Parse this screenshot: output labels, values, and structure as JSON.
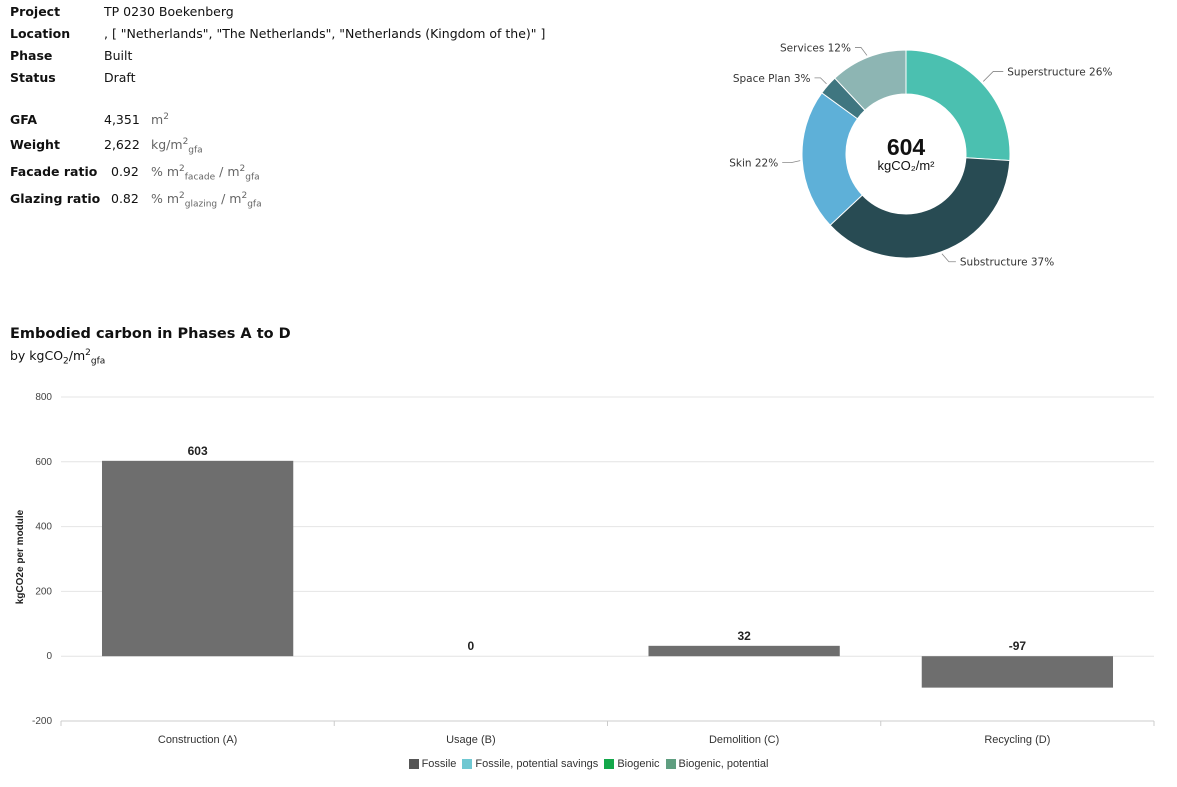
{
  "project_info": {
    "project_label": "Project",
    "project_value": "TP 0230 Boekenberg",
    "location_label": "Location",
    "location_value": ", [ \"Netherlands\", \"The Netherlands\", \"Netherlands (Kingdom of the)\" ]",
    "phase_label": "Phase",
    "phase_value": "Built",
    "status_label": "Status",
    "status_value": "Draft"
  },
  "metrics": {
    "gfa_label": "GFA",
    "gfa_value": "4,351",
    "gfa_unit": "m",
    "gfa_unit_sup": "2",
    "weight_label": "Weight",
    "weight_value": "2,622",
    "weight_unit": "kg/m",
    "weight_unit_sup": "2",
    "weight_unit_sub": "gfa",
    "facade_label": "Facade ratio",
    "facade_value": "0.92",
    "facade_unit_a": "% m",
    "facade_sup_a": "2",
    "facade_sub_a": "facade",
    "facade_unit_b": " / m",
    "facade_sup_b": "2",
    "facade_sub_b": "gfa",
    "glazing_label": "Glazing ratio",
    "glazing_value": "0.82",
    "glazing_unit_a": "% m",
    "glazing_sup_a": "2",
    "glazing_sub_a": "glazing",
    "glazing_unit_b": " / m",
    "glazing_sup_b": "2",
    "glazing_sub_b": "gfa"
  },
  "donut": {
    "center_value": "604",
    "center_unit": "kgCO₂/m²",
    "slices": [
      {
        "label": "Superstructure 26%",
        "value": 26,
        "color": "#4bc0b0"
      },
      {
        "label": "Substructure 37%",
        "value": 37,
        "color": "#284b53"
      },
      {
        "label": "Skin 22%",
        "value": 22,
        "color": "#5eb0d8"
      },
      {
        "label": "Space Plan 3%",
        "value": 3,
        "color": "#3f7680"
      },
      {
        "label": "Services 12%",
        "value": 12,
        "color": "#8db5b3"
      }
    ]
  },
  "section": {
    "title": "Embodied carbon in Phases A to D",
    "subtitle_prefix": "by kgCO",
    "subtitle_sub1": "2",
    "subtitle_mid": "/m",
    "subtitle_sup": "2",
    "subtitle_sub2": "gfa"
  },
  "chart_data": {
    "type": "bar",
    "categories": [
      "Construction (A)",
      "Usage (B)",
      "Demolition (C)",
      "Recycling (D)"
    ],
    "series": [
      {
        "name": "Fossile",
        "values": [
          603,
          0,
          32,
          -97
        ],
        "color": "#6e6e6e"
      }
    ],
    "value_labels": [
      "603",
      "0",
      "32",
      "-97"
    ],
    "ylabel": "kgCO2e per module",
    "ylim": [
      -200,
      800
    ],
    "yticks": [
      800,
      600,
      400,
      200,
      0,
      -200
    ],
    "grid": true,
    "legend": [
      {
        "name": "Fossile",
        "color": "#555555"
      },
      {
        "name": "Fossile, potential savings",
        "color": "#6fc8d2"
      },
      {
        "name": "Biogenic",
        "color": "#13a84a"
      },
      {
        "name": "Biogenic, potential",
        "color": "#5f9e80"
      }
    ],
    "legend_position": "bottom"
  }
}
